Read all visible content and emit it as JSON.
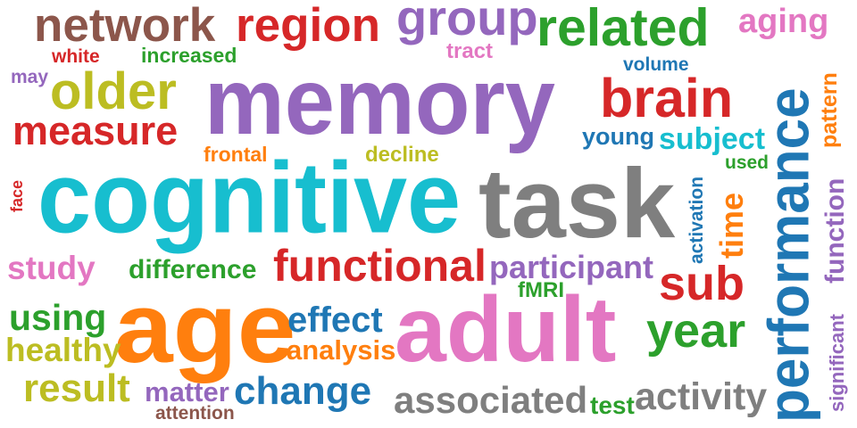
{
  "words": [
    {
      "text": "memory",
      "color": "#9467bd"
    },
    {
      "text": "cognitive",
      "color": "#17becf"
    },
    {
      "text": "task",
      "color": "#7f7f7f"
    },
    {
      "text": "age",
      "color": "#ff7f0e"
    },
    {
      "text": "adult",
      "color": "#e377c2"
    },
    {
      "text": "performance",
      "color": "#1f77b4"
    },
    {
      "text": "network",
      "color": "#8c564b"
    },
    {
      "text": "region",
      "color": "#d62728"
    },
    {
      "text": "group",
      "color": "#9467bd"
    },
    {
      "text": "related",
      "color": "#2ca02c"
    },
    {
      "text": "aging",
      "color": "#e377c2"
    },
    {
      "text": "older",
      "color": "#bcbd22"
    },
    {
      "text": "brain",
      "color": "#d62728"
    },
    {
      "text": "measure",
      "color": "#d62728"
    },
    {
      "text": "functional",
      "color": "#d62728"
    },
    {
      "text": "sub",
      "color": "#d62728"
    },
    {
      "text": "year",
      "color": "#2ca02c"
    },
    {
      "text": "change",
      "color": "#1f77b4"
    },
    {
      "text": "associated",
      "color": "#7f7f7f"
    },
    {
      "text": "activity",
      "color": "#7f7f7f"
    },
    {
      "text": "result",
      "color": "#bcbd22"
    },
    {
      "text": "effect",
      "color": "#1f77b4"
    },
    {
      "text": "analysis",
      "color": "#ff7f0e"
    },
    {
      "text": "participant",
      "color": "#9467bd"
    },
    {
      "text": "subject",
      "color": "#17becf"
    },
    {
      "text": "young",
      "color": "#1f77b4"
    },
    {
      "text": "study",
      "color": "#e377c2"
    },
    {
      "text": "difference",
      "color": "#2ca02c"
    },
    {
      "text": "using",
      "color": "#2ca02c"
    },
    {
      "text": "healthy",
      "color": "#bcbd22"
    },
    {
      "text": "matter",
      "color": "#9467bd"
    },
    {
      "text": "attention",
      "color": "#8c564b"
    },
    {
      "text": "test",
      "color": "#2ca02c"
    },
    {
      "text": "fMRI",
      "color": "#2ca02c"
    },
    {
      "text": "white",
      "color": "#d62728"
    },
    {
      "text": "increased",
      "color": "#2ca02c"
    },
    {
      "text": "tract",
      "color": "#e377c2"
    },
    {
      "text": "volume",
      "color": "#1f77b4"
    },
    {
      "text": "may",
      "color": "#9467bd"
    },
    {
      "text": "frontal",
      "color": "#ff7f0e"
    },
    {
      "text": "decline",
      "color": "#bcbd22"
    },
    {
      "text": "used",
      "color": "#2ca02c"
    },
    {
      "text": "time",
      "color": "#ff7f0e"
    },
    {
      "text": "activation",
      "color": "#1f77b4"
    },
    {
      "text": "function",
      "color": "#9467bd"
    },
    {
      "text": "pattern",
      "color": "#ff7f0e"
    },
    {
      "text": "significant",
      "color": "#9467bd"
    },
    {
      "text": "face",
      "color": "#d62728"
    }
  ]
}
